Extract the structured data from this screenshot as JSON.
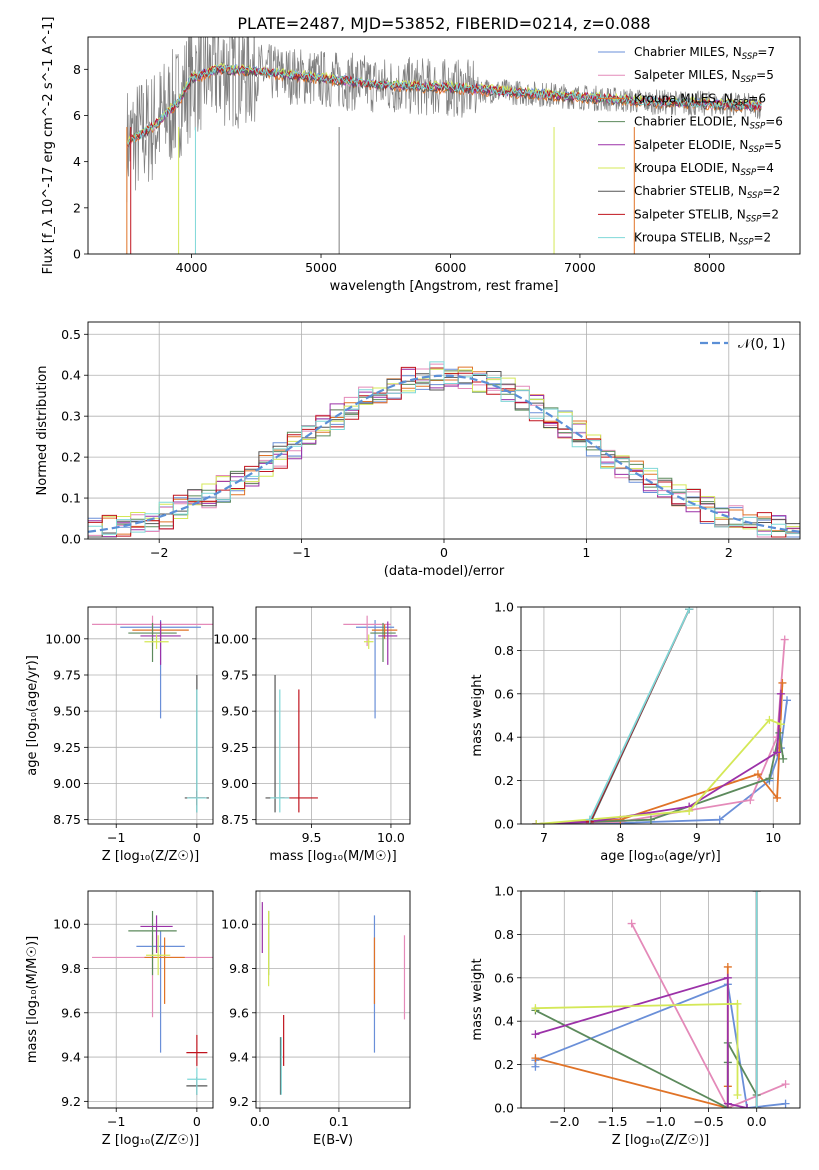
{
  "figure_title": "PLATE=2487, MJD=53852, FIBERID=0214, z=0.088",
  "series_styles": [
    {
      "name": "Chabrier MILES, N_SSP=7",
      "base": "Chabrier MILES, N",
      "sub": "SSP",
      "tail": "=7",
      "color": "#6a8fd8"
    },
    {
      "name": "Salpeter MILES, N_SSP=5",
      "base": "Salpeter MILES, N",
      "sub": "SSP",
      "tail": "=5",
      "color": "#e48ab9"
    },
    {
      "name": "Kroupa MILES, N_SSP=6",
      "base": "Kroupa MILES, N",
      "sub": "SSP",
      "tail": "=6",
      "color": "#e07327"
    },
    {
      "name": "Chabrier ELODIE, N_SSP=6",
      "base": "Chabrier ELODIE, N",
      "sub": "SSP",
      "tail": "=6",
      "color": "#5c8a5c"
    },
    {
      "name": "Salpeter ELODIE, N_SSP=5",
      "base": "Salpeter ELODIE, N",
      "sub": "SSP",
      "tail": "=5",
      "color": "#9b31a8"
    },
    {
      "name": "Kroupa ELODIE, N_SSP=4",
      "base": "Kroupa ELODIE, N",
      "sub": "SSP",
      "tail": "=4",
      "color": "#d4e857"
    },
    {
      "name": "Chabrier STELIB, N_SSP=2",
      "base": "Chabrier STELIB, N",
      "sub": "SSP",
      "tail": "=2",
      "color": "#555555"
    },
    {
      "name": "Salpeter STELIB, N_SSP=2",
      "base": "Salpeter STELIB, N",
      "sub": "SSP",
      "tail": "=2",
      "color": "#c0141e"
    },
    {
      "name": "Kroupa STELIB, N_SSP=2",
      "base": "Kroupa STELIB, N",
      "sub": "SSP",
      "tail": "=2",
      "color": "#7fd8d8"
    }
  ],
  "chart_data": [
    {
      "id": "spectrum",
      "type": "line",
      "xlabel": "wavelength [Angstrom, rest frame]",
      "ylabel": "Flux [f_λ 10^-17 erg cm^-2 s^-1 A^-1]",
      "xlim": [
        3200,
        8700
      ],
      "ylim": [
        0,
        9.4
      ],
      "xticks": [
        4000,
        5000,
        6000,
        7000,
        8000
      ],
      "yticks": [
        0,
        2,
        4,
        6,
        8
      ],
      "legend_position": "right",
      "continuum": [
        [
          3500,
          4.8
        ],
        [
          3700,
          5.5
        ],
        [
          3900,
          6.6
        ],
        [
          4000,
          7.6
        ],
        [
          4200,
          8.0
        ],
        [
          4500,
          7.9
        ],
        [
          5000,
          7.6
        ],
        [
          5500,
          7.3
        ],
        [
          6000,
          7.2
        ],
        [
          6500,
          7.0
        ],
        [
          7000,
          6.8
        ],
        [
          7500,
          6.6
        ],
        [
          8000,
          6.5
        ],
        [
          8400,
          6.4
        ]
      ],
      "noise_amplitude": 1.6,
      "model_offsets": [
        0.2,
        -0.1,
        -0.3,
        0.1,
        0.0,
        0.3,
        -0.2,
        0.15,
        0.05
      ]
    },
    {
      "id": "residuals",
      "type": "histogram",
      "xlabel": "(data-model)/error",
      "ylabel": "Normed distribution",
      "xlim": [
        -2.5,
        2.5
      ],
      "ylim": [
        0,
        0.53
      ],
      "xticks": [
        -2,
        -1,
        0,
        1,
        2
      ],
      "yticks": [
        0.0,
        0.1,
        0.2,
        0.3,
        0.4,
        0.5
      ],
      "grid": true,
      "bin_width": 0.1,
      "reference_curve": "N(0,1)",
      "reference_label": "𝒩(0, 1)",
      "legend_position": "top-right"
    },
    {
      "id": "age_vs_Z",
      "type": "errorbar",
      "xlabel": "Z [log₁₀(Z/Z☉)]",
      "ylabel": "age  [log₁₀(age/yr)]",
      "xlim": [
        -1.35,
        0.2
      ],
      "ylim": [
        8.72,
        10.22
      ],
      "xticks": [
        -1,
        0
      ],
      "yticks": [
        8.75,
        9.0,
        9.25,
        9.5,
        9.75,
        10.0
      ],
      "grid": true,
      "points": [
        {
          "x": -0.45,
          "y": 10.08,
          "xerr": 0.5,
          "yerr": [
            0.63,
            0.05
          ],
          "color": "#6a8fd8"
        },
        {
          "x": -0.55,
          "y": 10.1,
          "xerr": 0.75,
          "yerr": [
            0.15,
            0.06
          ],
          "color": "#e48ab9"
        },
        {
          "x": -0.45,
          "y": 10.06,
          "xerr": 0.35,
          "yerr": [
            0.06,
            0.04
          ],
          "color": "#e07327"
        },
        {
          "x": -0.55,
          "y": 10.04,
          "xerr": 0.3,
          "yerr": [
            0.2,
            0.07
          ],
          "color": "#5c8a5c"
        },
        {
          "x": -0.45,
          "y": 10.02,
          "xerr": 0.25,
          "yerr": [
            0.2,
            0.1
          ],
          "color": "#9b31a8"
        },
        {
          "x": -0.5,
          "y": 9.98,
          "xerr": 0.15,
          "yerr": [
            0.05,
            0.05
          ],
          "color": "#d4e857"
        },
        {
          "x": 0.0,
          "y": 8.9,
          "xerr": 0.15,
          "yerr": [
            0.1,
            0.85
          ],
          "color": "#555555"
        },
        {
          "x": 0.0,
          "y": 8.9,
          "xerr": 0.1,
          "yerr": [
            0.05,
            0.05
          ],
          "color": "#c0141e"
        },
        {
          "x": 0.0,
          "y": 8.9,
          "xerr": 0.12,
          "yerr": [
            0.1,
            0.75
          ],
          "color": "#7fd8d8"
        }
      ]
    },
    {
      "id": "age_vs_mass",
      "type": "errorbar",
      "xlabel": "mass [log₁₀(M/M☉)]",
      "ylabel": "",
      "xlim": [
        9.15,
        10.12
      ],
      "ylim": [
        8.72,
        10.22
      ],
      "xticks": [
        9.5,
        10.0
      ],
      "yticks": [
        8.75,
        9.0,
        9.25,
        9.5,
        9.75,
        10.0
      ],
      "grid": true,
      "points": [
        {
          "x": 9.9,
          "y": 10.08,
          "xerr": 0.12,
          "yerr": [
            0.63,
            0.05
          ],
          "color": "#6a8fd8"
        },
        {
          "x": 9.85,
          "y": 10.1,
          "xerr": 0.15,
          "yerr": [
            0.15,
            0.06
          ],
          "color": "#e48ab9"
        },
        {
          "x": 9.96,
          "y": 10.06,
          "xerr": 0.08,
          "yerr": [
            0.06,
            0.04
          ],
          "color": "#e07327"
        },
        {
          "x": 9.95,
          "y": 10.04,
          "xerr": 0.08,
          "yerr": [
            0.2,
            0.07
          ],
          "color": "#5c8a5c"
        },
        {
          "x": 9.98,
          "y": 10.02,
          "xerr": 0.06,
          "yerr": [
            0.2,
            0.1
          ],
          "color": "#9b31a8"
        },
        {
          "x": 9.86,
          "y": 9.98,
          "xerr": 0.03,
          "yerr": [
            0.05,
            0.05
          ],
          "color": "#d4e857"
        },
        {
          "x": 9.27,
          "y": 8.9,
          "xerr": 0.06,
          "yerr": [
            0.1,
            0.85
          ],
          "color": "#555555"
        },
        {
          "x": 9.42,
          "y": 8.9,
          "xerr": 0.12,
          "yerr": [
            0.1,
            0.75
          ],
          "color": "#c0141e"
        },
        {
          "x": 9.3,
          "y": 8.9,
          "xerr": 0.06,
          "yerr": [
            0.1,
            0.75
          ],
          "color": "#7fd8d8"
        }
      ]
    },
    {
      "id": "weight_vs_age",
      "type": "line",
      "xlabel": "age  [log₁₀(age/yr)]",
      "ylabel": "mass weight",
      "xlim": [
        6.7,
        10.35
      ],
      "ylim": [
        0,
        1.0
      ],
      "xticks": [
        7,
        8,
        9,
        10
      ],
      "yticks": [
        0.0,
        0.2,
        0.4,
        0.6,
        0.8,
        1.0
      ],
      "grid": true,
      "series": [
        {
          "color": "#6a8fd8",
          "x": [
            6.9,
            7.6,
            9.3,
            9.95,
            10.1,
            10.18
          ],
          "y": [
            0.0,
            0.0,
            0.02,
            0.2,
            0.35,
            0.57
          ]
        },
        {
          "color": "#e48ab9",
          "x": [
            6.9,
            8.0,
            9.7,
            10.05,
            10.15
          ],
          "y": [
            0.0,
            0.01,
            0.11,
            0.4,
            0.85
          ]
        },
        {
          "color": "#e07327",
          "x": [
            6.9,
            8.0,
            9.8,
            10.05,
            10.12
          ],
          "y": [
            0.0,
            0.02,
            0.23,
            0.12,
            0.65
          ]
        },
        {
          "color": "#5c8a5c",
          "x": [
            6.9,
            8.4,
            9.95,
            10.08,
            10.13
          ],
          "y": [
            0.0,
            0.02,
            0.21,
            0.42,
            0.3
          ]
        },
        {
          "color": "#9b31a8",
          "x": [
            6.9,
            7.6,
            8.9,
            10.05,
            10.1
          ],
          "y": [
            0.0,
            0.01,
            0.08,
            0.33,
            0.6
          ]
        },
        {
          "color": "#d4e857",
          "x": [
            6.9,
            8.9,
            9.95,
            10.1
          ],
          "y": [
            0.0,
            0.06,
            0.48,
            0.46
          ]
        },
        {
          "color": "#555555",
          "x": [
            7.6,
            8.9
          ],
          "y": [
            0.0,
            0.99
          ]
        },
        {
          "color": "#c0141e",
          "x": [
            7.6,
            8.9
          ],
          "y": [
            0.01,
            0.99
          ]
        },
        {
          "color": "#7fd8d8",
          "x": [
            7.6,
            8.9
          ],
          "y": [
            0.02,
            0.99
          ]
        }
      ]
    },
    {
      "id": "mass_vs_Z",
      "type": "errorbar",
      "xlabel": "Z [log₁₀(Z/Z☉)]",
      "ylabel": "mass [log₁₀(M/M☉)]",
      "xlim": [
        -1.35,
        0.2
      ],
      "ylim": [
        9.17,
        10.15
      ],
      "xticks": [
        -1,
        0
      ],
      "yticks": [
        9.2,
        9.4,
        9.6,
        9.8,
        10.0
      ],
      "grid": true,
      "points": [
        {
          "x": -0.45,
          "y": 9.9,
          "xerr": 0.3,
          "yerr": [
            0.48,
            0.07
          ],
          "color": "#6a8fd8"
        },
        {
          "x": -0.55,
          "y": 9.85,
          "xerr": 0.75,
          "yerr": [
            0.27,
            0.1
          ],
          "color": "#e48ab9"
        },
        {
          "x": -0.4,
          "y": 9.85,
          "xerr": 0.25,
          "yerr": [
            0.21,
            0.09
          ],
          "color": "#e07327"
        },
        {
          "x": -0.55,
          "y": 9.97,
          "xerr": 0.3,
          "yerr": [
            0.2,
            0.09
          ],
          "color": "#5c8a5c"
        },
        {
          "x": -0.5,
          "y": 9.99,
          "xerr": 0.2,
          "yerr": [
            0.12,
            0.05
          ],
          "color": "#9b31a8"
        },
        {
          "x": -0.48,
          "y": 9.86,
          "xerr": 0.15,
          "yerr": [
            0.09,
            0.09
          ],
          "color": "#d4e857"
        },
        {
          "x": 0.0,
          "y": 9.27,
          "xerr": 0.13,
          "yerr": [
            0.04,
            0.04
          ],
          "color": "#555555"
        },
        {
          "x": 0.0,
          "y": 9.42,
          "xerr": 0.13,
          "yerr": [
            0.06,
            0.08
          ],
          "color": "#c0141e"
        },
        {
          "x": 0.0,
          "y": 9.3,
          "xerr": 0.12,
          "yerr": [
            0.07,
            0.05
          ],
          "color": "#7fd8d8"
        }
      ]
    },
    {
      "id": "mass_vs_ebv",
      "type": "errorbar",
      "xlabel": "E(B-V)",
      "ylabel": "",
      "xlim": [
        -0.005,
        0.19
      ],
      "ylim": [
        9.17,
        10.15
      ],
      "xticks": [
        0.0,
        0.1
      ],
      "yticks": [
        9.2,
        9.4,
        9.6,
        9.8,
        10.0
      ],
      "grid": true,
      "points": [
        {
          "x": 0.145,
          "y": 9.73,
          "xerr": 0.0,
          "yerr": [
            0.31,
            0.31
          ],
          "color": "#6a8fd8"
        },
        {
          "x": 0.183,
          "y": 9.76,
          "xerr": 0.0,
          "yerr": [
            0.19,
            0.19
          ],
          "color": "#e48ab9"
        },
        {
          "x": 0.145,
          "y": 9.85,
          "xerr": 0.0,
          "yerr": [
            0.21,
            0.09
          ],
          "color": "#e07327"
        },
        {
          "x": 0.011,
          "y": 9.97,
          "xerr": 0.0,
          "yerr": [
            0.2,
            0.09
          ],
          "color": "#5c8a5c"
        },
        {
          "x": 0.003,
          "y": 9.99,
          "xerr": 0.0,
          "yerr": [
            0.12,
            0.11
          ],
          "color": "#9b31a8"
        },
        {
          "x": 0.011,
          "y": 9.86,
          "xerr": 0.0,
          "yerr": [
            0.14,
            0.2
          ],
          "color": "#d4e857"
        },
        {
          "x": 0.026,
          "y": 9.33,
          "xerr": 0.0,
          "yerr": [
            0.1,
            0.16
          ],
          "color": "#555555"
        },
        {
          "x": 0.03,
          "y": 9.47,
          "xerr": 0.0,
          "yerr": [
            0.11,
            0.12
          ],
          "color": "#c0141e"
        },
        {
          "x": 0.027,
          "y": 9.35,
          "xerr": 0.0,
          "yerr": [
            0.12,
            0.14
          ],
          "color": "#7fd8d8"
        }
      ]
    },
    {
      "id": "weight_vs_Z",
      "type": "line",
      "xlabel": "Z [log₁₀(Z/Z☉)]",
      "ylabel": "mass weight",
      "xlim": [
        -2.45,
        0.45
      ],
      "ylim": [
        0,
        1.0
      ],
      "xticks": [
        -2.0,
        -1.5,
        -1.0,
        -0.5,
        0.0
      ],
      "yticks": [
        0.0,
        0.2,
        0.4,
        0.6,
        0.8,
        1.0
      ],
      "grid": true,
      "series": [
        {
          "color": "#6a8fd8",
          "x": [
            -2.3,
            -2.3,
            -0.3,
            -0.1,
            0.3
          ],
          "y": [
            0.19,
            0.22,
            0.57,
            0.0,
            0.02
          ]
        },
        {
          "color": "#e48ab9",
          "x": [
            -1.3,
            -0.3,
            0.3
          ],
          "y": [
            0.85,
            0.0,
            0.11
          ]
        },
        {
          "color": "#e07327",
          "x": [
            -2.3,
            -0.3,
            -0.3,
            -0.3
          ],
          "y": [
            0.23,
            0.0,
            0.1,
            0.65
          ]
        },
        {
          "color": "#5c8a5c",
          "x": [
            -2.3,
            -0.3,
            -0.3,
            -0.3,
            0.0
          ],
          "y": [
            0.45,
            0.0,
            0.21,
            0.3,
            0.06
          ]
        },
        {
          "color": "#9b31a8",
          "x": [
            -2.3,
            -0.3,
            -0.3,
            -0.1
          ],
          "y": [
            0.34,
            0.6,
            0.02,
            0.0
          ]
        },
        {
          "color": "#d4e857",
          "x": [
            -2.3,
            -0.2,
            -0.2
          ],
          "y": [
            0.46,
            0.48,
            0.06
          ]
        },
        {
          "color": "#555555",
          "x": [
            0.0,
            0.0
          ],
          "y": [
            0.0,
            1.0
          ]
        },
        {
          "color": "#c0141e",
          "x": [
            0.0,
            0.0
          ],
          "y": [
            0.0,
            1.0
          ]
        },
        {
          "color": "#7fd8d8",
          "x": [
            0.0,
            0.0
          ],
          "y": [
            0.0,
            1.0
          ]
        }
      ]
    }
  ]
}
